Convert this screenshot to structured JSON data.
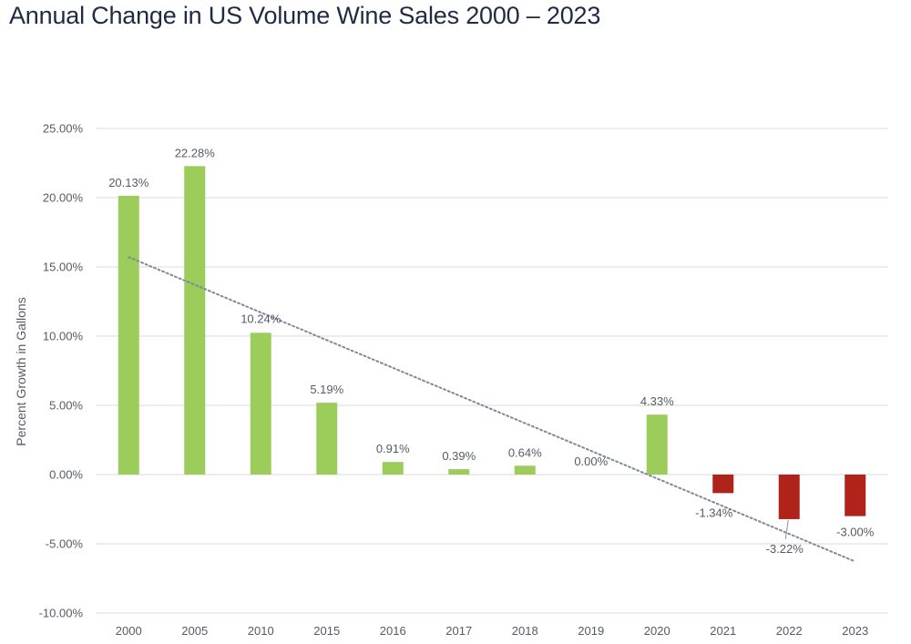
{
  "title": "Annual Change in US Volume Wine Sales 2000 – 2023",
  "colors": {
    "positive": "#9ccc5a",
    "negative": "#b0231a",
    "grid": "#d9d9d9",
    "trendline": "#7f8a99",
    "text": "#555b66",
    "title": "#1f2a44"
  },
  "chart_data": {
    "type": "bar",
    "title": "Annual Change in US Volume Wine Sales 2000 – 2023",
    "xlabel": "",
    "ylabel": "Percent Growth in Gallons",
    "ylim": [
      -10,
      25
    ],
    "ytick_values": [
      -10,
      -5,
      0,
      5,
      10,
      15,
      20,
      25
    ],
    "ytick_labels": [
      "-10.00%",
      "-5.00%",
      "0.00%",
      "5.00%",
      "10.00%",
      "15.00%",
      "20.00%",
      "25.00%"
    ],
    "categories": [
      "2000",
      "2005",
      "2010",
      "2015",
      "2016",
      "2017",
      "2018",
      "2019",
      "2020",
      "2021",
      "2022",
      "2023"
    ],
    "values": [
      20.13,
      22.28,
      10.24,
      5.19,
      0.91,
      0.39,
      0.64,
      0.0,
      4.33,
      -1.34,
      -3.22,
      -3.0
    ],
    "data_labels": [
      "20.13%",
      "22.28%",
      "10.24%",
      "5.19%",
      "0.91%",
      "0.39%",
      "0.64%",
      "0.00%",
      "4.33%",
      "-1.34%",
      "-3.22%",
      "-3.00%"
    ],
    "trendline": {
      "type": "linear",
      "style": "dotted"
    },
    "grid": true,
    "legend": "none"
  }
}
